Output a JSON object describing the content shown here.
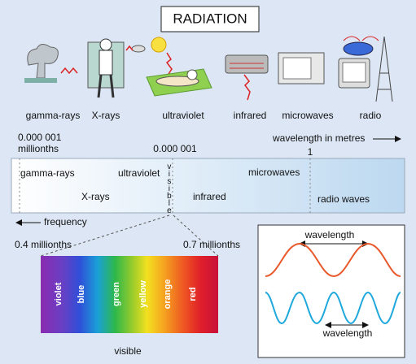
{
  "title": "RADIATION",
  "sources": [
    "gamma-rays",
    "X-rays",
    "ultraviolet",
    "infrared",
    "microwaves",
    "radio"
  ],
  "scale": {
    "left_value": "0.000 001",
    "left_unit": "millionths",
    "middle_value": "0.000 001",
    "axis_label": "wavelength in metres",
    "right_value": "1"
  },
  "band": {
    "labels": [
      "gamma-rays",
      "ultraviolet",
      "microwaves",
      "X-rays",
      "infrared",
      "radio waves"
    ],
    "visible": "visible"
  },
  "frequency_label": "frequency",
  "visible": {
    "min_label": "0.4 millionths",
    "max_label": "0.7 millionths",
    "colors": [
      "violet",
      "blue",
      "green",
      "yellow",
      "orange",
      "red"
    ],
    "caption": "visible"
  },
  "wave": {
    "top_label": "wavelength",
    "bottom_label": "wavelength"
  }
}
